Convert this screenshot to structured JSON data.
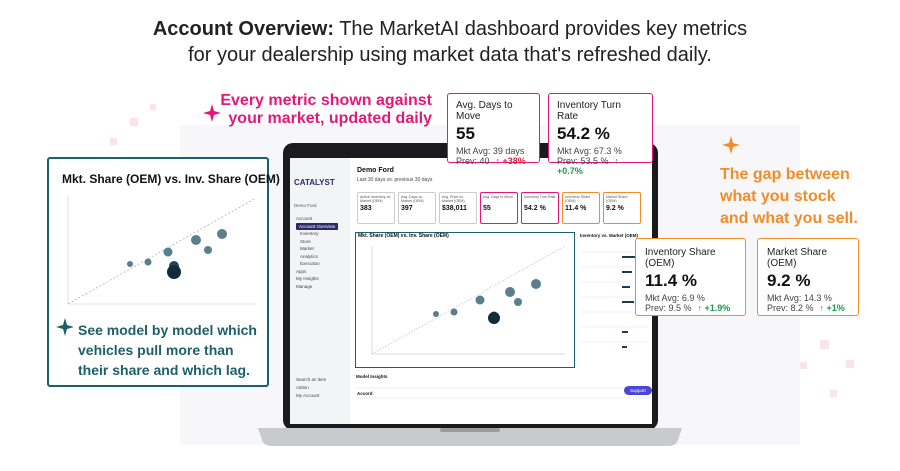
{
  "header": {
    "title_bold": "Account Overview:",
    "title_rest": "The MarketAI dashboard provides key metrics",
    "line2": "for your dealership using market data that's refreshed daily."
  },
  "callouts": {
    "metric": [
      "Every metric shown against",
      "your market, updated daily"
    ],
    "gap": [
      "The gap between",
      "what you stock",
      "and what you sell."
    ],
    "model": [
      "See model by model which",
      "vehicles pull more than",
      "their share and which lag."
    ]
  },
  "cards": {
    "days_to_move": {
      "title": "Avg. Days to Move",
      "value": "55",
      "mkt": "Mkt Avg: 39 days",
      "prev": "Prev: 40",
      "change": "↑ +38%"
    },
    "turn_rate": {
      "title": "Inventory Turn Rate",
      "value": "54.2 %",
      "mkt": "Mkt Avg: 67.3 %",
      "prev": "Prev: 53.5 %",
      "change": "↑ +0.7%"
    },
    "inv_share": {
      "title": "Inventory Share (OEM)",
      "value": "11.4 %",
      "mkt": "Mkt Avg: 6.9 %",
      "prev": "Prev: 9.5 %",
      "change": "↑ +1.9%"
    },
    "mkt_share": {
      "title": "Market Share (OEM)",
      "value": "9.2 %",
      "mkt": "Mkt Avg: 14.3 %",
      "prev": "Prev: 8.2 %",
      "change": "↑ +1%"
    }
  },
  "scatter_panel": {
    "title": "Mkt. Share (OEM) vs. Inv. Share (OEM)"
  },
  "dashboard": {
    "logo": "CATALYST",
    "store": "Demo Ford",
    "title": "Demo Ford",
    "subtitle": "Last 30 days vs. previous 30 days",
    "nav": [
      "Account",
      "Account Overview",
      "Inventory",
      "Store",
      "Market",
      "Analytics",
      "Execution",
      "Apps",
      "My Insights",
      "Manage"
    ],
    "nav_bottom": [
      "Search an item",
      "Admin",
      "My Account"
    ],
    "mini_cards": [
      {
        "title": "Active Inventory vs. Market (OEM)",
        "value": "383"
      },
      {
        "title": "Avg. Days vs. Market (OEM)",
        "value": "397"
      },
      {
        "title": "Avg. Price vs. Market (OEM)",
        "value": "$38,011"
      },
      {
        "title": "Avg. Days to Move",
        "value": "55"
      },
      {
        "title": "Inventory Turn Rate",
        "value": "54.2 %"
      },
      {
        "title": "Inventory Share (OEM)",
        "value": "11.4 %"
      },
      {
        "title": "Market Share (OEM)",
        "value": "9.2 %"
      }
    ],
    "chart_title": "Mkt. Share (OEM) vs. Inv. Share (OEM)",
    "table_title": "Inventory vs. Market (OEM)",
    "insights_title": "Model Insights",
    "insights_row": "Accord",
    "support": "Support"
  }
}
